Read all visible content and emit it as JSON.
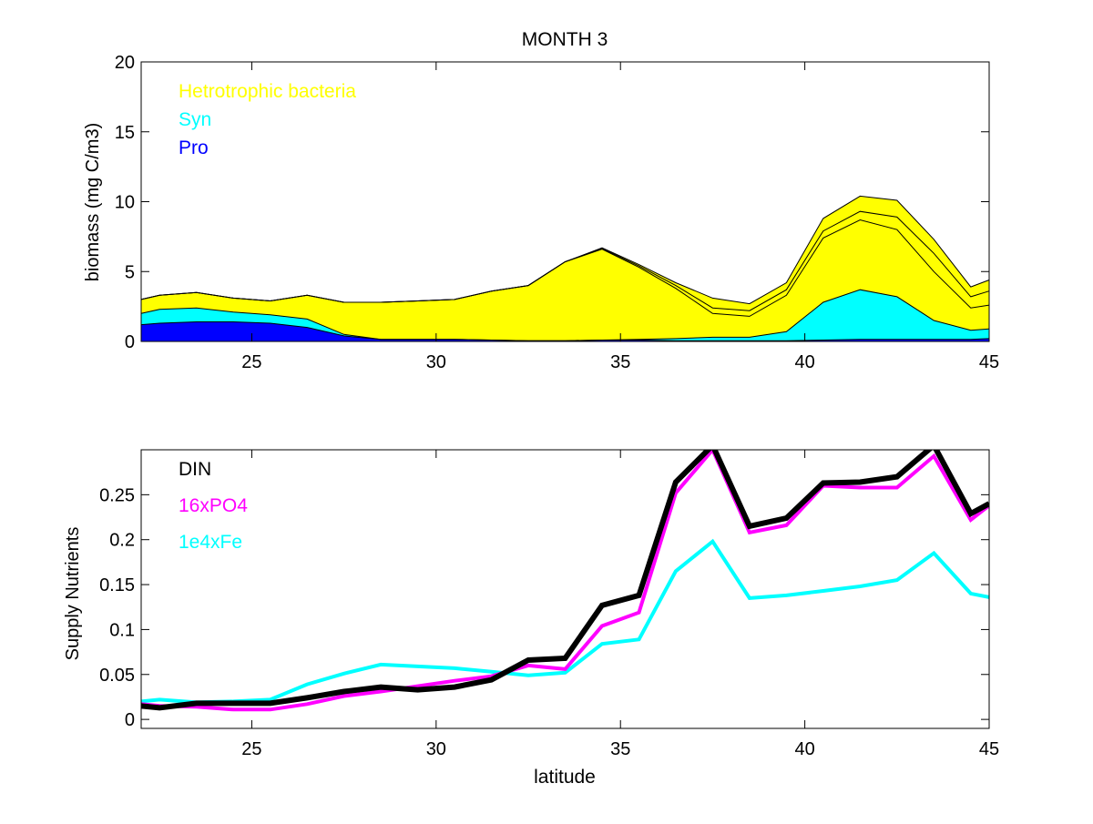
{
  "chart_data": [
    {
      "type": "area",
      "title": "MONTH 3",
      "xlabel": "",
      "ylabel": "biomass (mg C/m3)",
      "xlim": [
        22,
        45
      ],
      "ylim": [
        0,
        20
      ],
      "xticks": [
        25,
        30,
        35,
        40,
        45
      ],
      "yticks": [
        0,
        5,
        10,
        15,
        20
      ],
      "grid": false,
      "legend_position": "top-left",
      "legend": [
        {
          "label": "Hetrotrophic bacteria",
          "color": "#ffff00"
        },
        {
          "label": "Syn",
          "color": "#00ffff"
        },
        {
          "label": "Pro",
          "color": "#0000ff"
        }
      ],
      "x": [
        22,
        22.5,
        23.5,
        24.5,
        25.5,
        26.5,
        27.5,
        28.5,
        29.5,
        30.5,
        31.5,
        32.5,
        33.5,
        34.5,
        35.5,
        36.5,
        37.5,
        38.5,
        39.5,
        40.5,
        41.5,
        42.5,
        43.5,
        44.5,
        45
      ],
      "stacked_totals": [
        {
          "name": "Pro",
          "color": "#0000ff",
          "values": [
            1.2,
            1.3,
            1.4,
            1.4,
            1.3,
            1.0,
            0.4,
            0.15,
            0.15,
            0.15,
            0.1,
            0.05,
            0.05,
            0.1,
            0.1,
            0.05,
            0.05,
            0.05,
            0.05,
            0.1,
            0.15,
            0.15,
            0.15,
            0.15,
            0.2
          ]
        },
        {
          "name": "Syn",
          "color": "#00ffff",
          "values": [
            2.0,
            2.3,
            2.4,
            2.1,
            1.9,
            1.6,
            0.5,
            0.15,
            0.15,
            0.15,
            0.1,
            0.05,
            0.05,
            0.1,
            0.15,
            0.2,
            0.3,
            0.3,
            0.7,
            2.8,
            3.7,
            3.2,
            1.5,
            0.8,
            0.9
          ]
        },
        {
          "name": "Hetrotrophic bacteria (layer 1)",
          "color": "#ffff00",
          "values": [
            3.0,
            3.3,
            3.5,
            3.1,
            2.9,
            3.3,
            2.8,
            2.8,
            2.9,
            3.0,
            3.6,
            4.0,
            5.7,
            6.6,
            5.3,
            3.8,
            2.0,
            1.8,
            3.3,
            7.4,
            8.7,
            8.0,
            5.0,
            2.4,
            2.6
          ]
        },
        {
          "name": "Hetrotrophic bacteria (layer 2)",
          "color": "#ffff00",
          "values": [
            3.0,
            3.3,
            3.5,
            3.1,
            2.9,
            3.3,
            2.8,
            2.8,
            2.9,
            3.0,
            3.6,
            4.0,
            5.7,
            6.65,
            5.4,
            4.0,
            2.4,
            2.2,
            3.7,
            7.9,
            9.3,
            8.9,
            6.3,
            3.2,
            3.6
          ]
        },
        {
          "name": "Hetrotrophic bacteria (layer 3)",
          "color": "#ffff00",
          "values": [
            3.0,
            3.3,
            3.5,
            3.1,
            2.9,
            3.3,
            2.8,
            2.8,
            2.9,
            3.0,
            3.6,
            4.0,
            5.7,
            6.7,
            5.5,
            4.2,
            3.1,
            2.7,
            4.2,
            8.8,
            10.4,
            10.1,
            7.3,
            3.9,
            4.4
          ]
        }
      ]
    },
    {
      "type": "line",
      "title": "",
      "xlabel": "latitude",
      "ylabel": "Supply Nutrients",
      "xlim": [
        22,
        45
      ],
      "ylim": [
        -0.01,
        0.3
      ],
      "xticks": [
        25,
        30,
        35,
        40,
        45
      ],
      "yticks": [
        0,
        0.05,
        0.1,
        0.15,
        0.2,
        0.25
      ],
      "ytick_labels": [
        "0",
        "0.05",
        "0.1",
        "0.15",
        "0.2",
        "0.25"
      ],
      "grid": false,
      "legend_position": "top-left",
      "x": [
        22,
        22.5,
        23.5,
        24.5,
        25.5,
        26.5,
        27.5,
        28.5,
        29.5,
        30.5,
        31.5,
        32.5,
        33.5,
        34.5,
        35.5,
        36.5,
        37.5,
        38.5,
        39.5,
        40.5,
        41.5,
        42.5,
        43.5,
        44.5,
        45
      ],
      "series": [
        {
          "name": "1e4xFe",
          "color": "#00ffff",
          "values": [
            0.02,
            0.022,
            0.019,
            0.02,
            0.022,
            0.039,
            0.051,
            0.061,
            0.059,
            0.057,
            0.053,
            0.049,
            0.052,
            0.084,
            0.089,
            0.165,
            0.198,
            0.135,
            0.138,
            0.143,
            0.148,
            0.155,
            0.185,
            0.14,
            0.136
          ]
        },
        {
          "name": "16xPO4",
          "color": "#ff00ff",
          "values": [
            0.017,
            0.015,
            0.014,
            0.011,
            0.011,
            0.017,
            0.026,
            0.031,
            0.037,
            0.043,
            0.048,
            0.06,
            0.056,
            0.104,
            0.119,
            0.252,
            0.3,
            0.208,
            0.216,
            0.26,
            0.258,
            0.258,
            0.293,
            0.222,
            0.238
          ]
        },
        {
          "name": "DIN",
          "color": "#000000",
          "values": [
            0.015,
            0.013,
            0.018,
            0.018,
            0.018,
            0.024,
            0.031,
            0.036,
            0.033,
            0.036,
            0.044,
            0.066,
            0.068,
            0.127,
            0.138,
            0.264,
            0.305,
            0.215,
            0.224,
            0.263,
            0.264,
            0.27,
            0.305,
            0.229,
            0.24
          ]
        }
      ],
      "legend": [
        {
          "label": "DIN",
          "color": "#000000"
        },
        {
          "label": "16xPO4",
          "color": "#ff00ff"
        },
        {
          "label": "1e4xFe",
          "color": "#00ffff"
        }
      ]
    }
  ]
}
